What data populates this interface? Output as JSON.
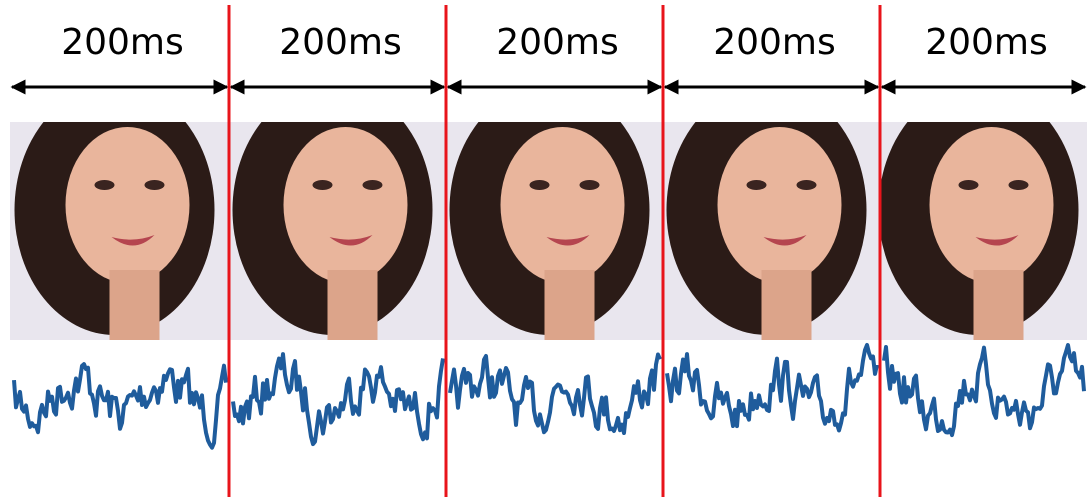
{
  "segments": [
    "200ms",
    "200ms",
    "200ms",
    "200ms",
    "200ms"
  ]
}
